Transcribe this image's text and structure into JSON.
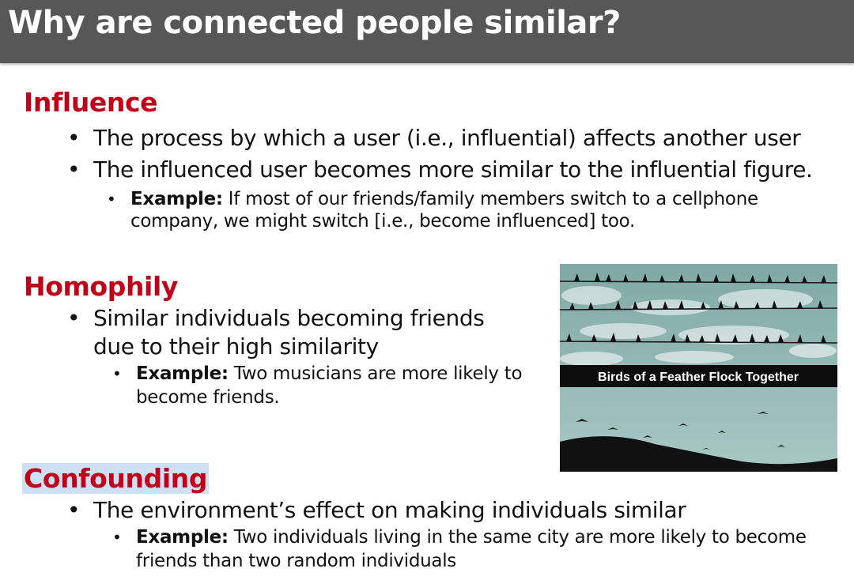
{
  "title": "Why are connected people similar?",
  "influence": {
    "heading": "Influence",
    "bullets": [
      "The process by which a user (i.e., influential) affects another user",
      "The influenced user becomes more similar to the influential figure."
    ],
    "example_label": "Example:",
    "example_line1": "If most of our friends/family members switch to a cellphone",
    "example_line2": "company, we might switch [i.e., become influenced] too."
  },
  "homophily": {
    "heading": "Homophily",
    "bullet_line1": "Similar individuals becoming friends",
    "bullet_line2": "due to their high similarity",
    "example_label": "Example:",
    "example_line1": "Two musicians are more likely to",
    "example_line2": "become friends."
  },
  "image": {
    "caption": "Birds of a Feather Flock Together"
  },
  "confounding": {
    "heading": "Confounding",
    "bullet": "The environment’s effect on making individuals similar",
    "example_label": "Example:",
    "example_line1": "Two individuals living in the same city are more likely to become",
    "example_line2": "friends than two random individuals"
  },
  "colors": {
    "title_bar": "#575757",
    "heading_red": "#c00018",
    "highlight": "#cfe0f5"
  }
}
